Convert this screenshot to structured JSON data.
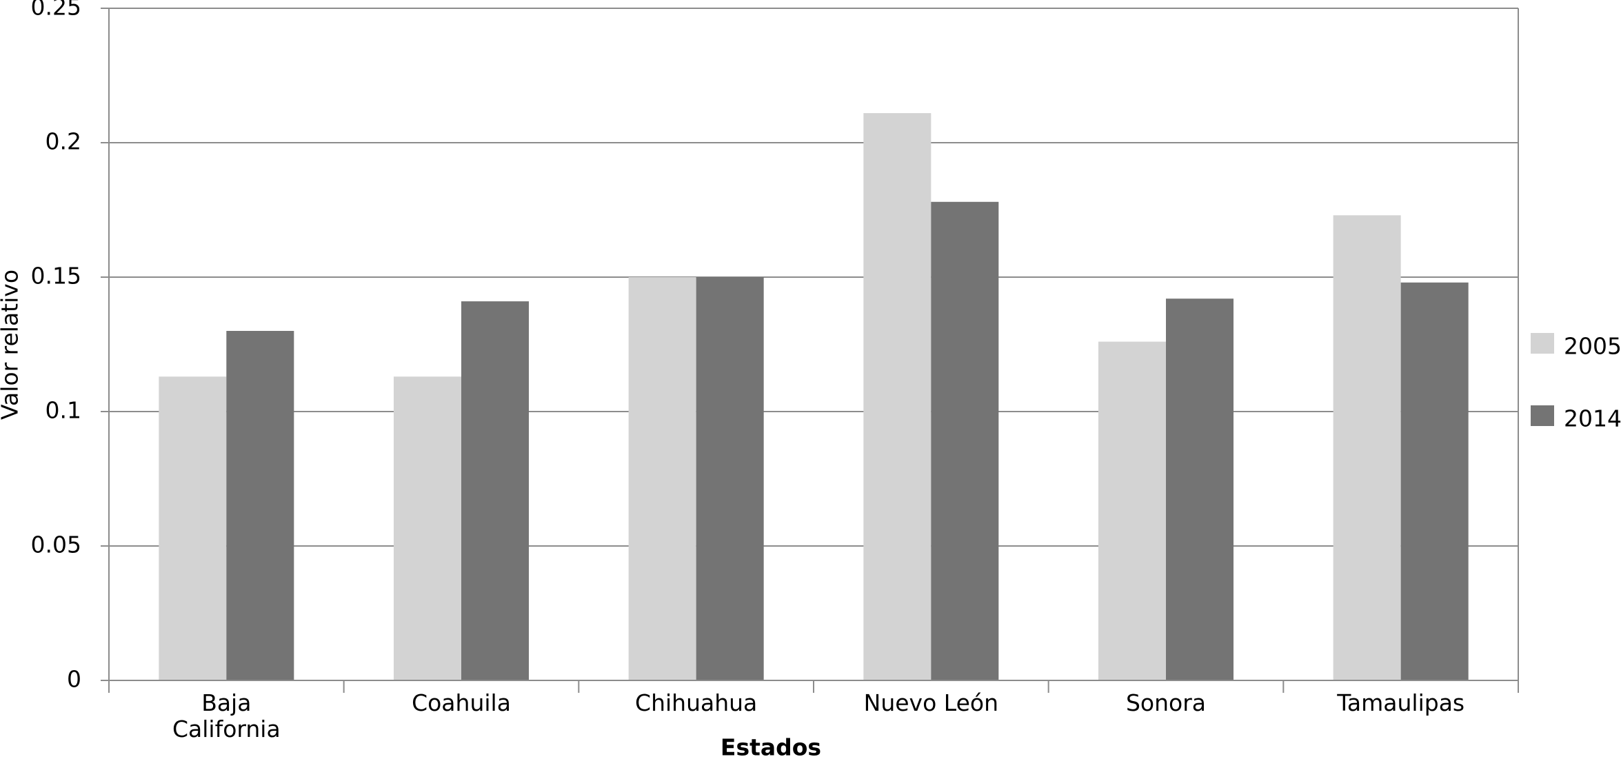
{
  "chart_data": {
    "type": "bar",
    "x_label": "Estados",
    "y_label": "Valor  relativo",
    "categories": [
      "Baja California",
      "Coahuila",
      "Chihuahua",
      "Nuevo León",
      "Sonora",
      "Tamaulipas"
    ],
    "series": [
      {
        "name": "2005",
        "color": "#d3d3d3",
        "values": [
          0.113,
          0.113,
          0.15,
          0.211,
          0.126,
          0.173
        ]
      },
      {
        "name": "2014",
        "color": "#747474",
        "values": [
          0.13,
          0.141,
          0.15,
          0.178,
          0.142,
          0.148
        ]
      }
    ],
    "ylim": [
      0,
      0.25
    ],
    "yticks": [
      0,
      0.05,
      0.1,
      0.15,
      0.2,
      0.25
    ],
    "grid": true,
    "legend": "right"
  }
}
